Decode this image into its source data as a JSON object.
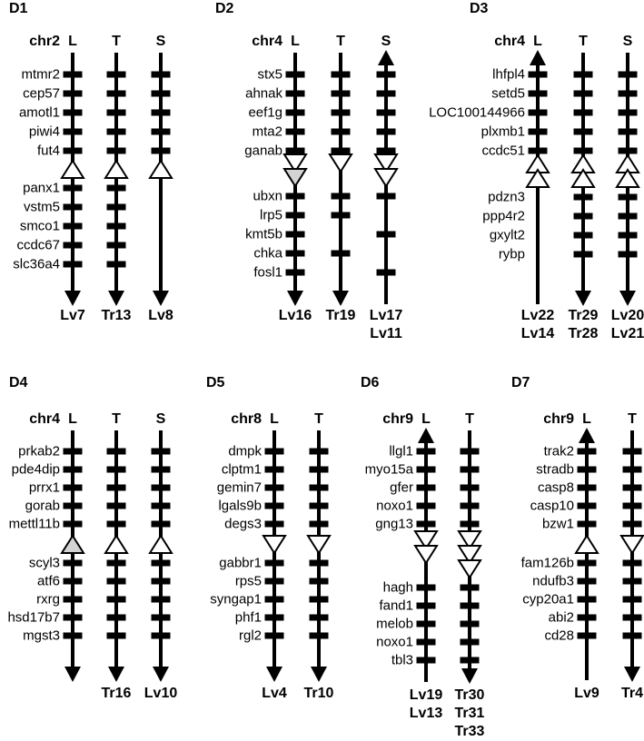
{
  "figure": {
    "colors": {
      "background": "#ffffff",
      "ink": "#000000",
      "gray_fill": "#d3d3d3",
      "white_fill": "#ffffff"
    },
    "panels": [
      {
        "id": "D1",
        "chromosome": "chr2",
        "genes_above": [
          "mtmr2",
          "cep57",
          "amotl1",
          "piwi4",
          "fut4"
        ],
        "genes_below": [
          "panx1",
          "vstm5",
          "smco1",
          "ccdc67",
          "slc36a4"
        ],
        "columns": [
          {
            "header": "L",
            "top": "line",
            "bottom": "arrow-down",
            "ticks_above": [
              0,
              1,
              2,
              3,
              4
            ],
            "ticks_below": [
              0,
              1,
              2,
              3,
              4
            ],
            "triangles": [
              {
                "dir": "up",
                "fill": "white"
              }
            ],
            "labels": [
              "Lv7"
            ]
          },
          {
            "header": "T",
            "top": "line",
            "bottom": "arrow-down",
            "ticks_above": [
              0,
              1,
              2,
              3,
              4
            ],
            "ticks_below": [
              0,
              1,
              2,
              3,
              4
            ],
            "triangles": [
              {
                "dir": "up",
                "fill": "white"
              }
            ],
            "labels": [
              "Tr13"
            ]
          },
          {
            "header": "S",
            "top": "line",
            "bottom": "arrow-down",
            "ticks_above": [
              0,
              1,
              2,
              3,
              4
            ],
            "ticks_below": [],
            "triangles": [
              {
                "dir": "up",
                "fill": "white"
              }
            ],
            "labels": [
              "Lv8"
            ]
          }
        ]
      },
      {
        "id": "D2",
        "chromosome": "chr4",
        "genes_above": [
          "stx5",
          "ahnak",
          "eef1g",
          "mta2",
          "ganab"
        ],
        "genes_below": [
          "ubxn",
          "lrp5",
          "kmt5b",
          "chka",
          "fosl1"
        ],
        "columns": [
          {
            "header": "L",
            "top": "line",
            "bottom": "arrow-down",
            "ticks_above": [
              0,
              1,
              2,
              3,
              4
            ],
            "ticks_below": [
              0,
              1,
              2,
              3,
              4
            ],
            "triangles": [
              {
                "dir": "down",
                "fill": "white"
              },
              {
                "dir": "down",
                "fill": "gray"
              }
            ],
            "labels": [
              "Lv16"
            ]
          },
          {
            "header": "T",
            "top": "line",
            "bottom": "arrow-down",
            "ticks_above": [
              0,
              1,
              2,
              3,
              4
            ],
            "ticks_below": [
              0,
              1,
              3
            ],
            "triangles": [
              {
                "dir": "down",
                "fill": "white"
              }
            ],
            "labels": [
              "Tr19"
            ]
          },
          {
            "header": "S",
            "top": "arrow-up",
            "bottom": "line",
            "ticks_above": [
              0,
              1,
              2,
              3,
              4
            ],
            "ticks_below": [
              0,
              2,
              4
            ],
            "triangles": [
              {
                "dir": "down",
                "fill": "white"
              },
              {
                "dir": "down",
                "fill": "white"
              }
            ],
            "labels": [
              "Lv17",
              "Lv11"
            ]
          }
        ]
      },
      {
        "id": "D3",
        "chromosome": "chr4",
        "genes_above": [
          "lhfpl4",
          "setd5",
          "LOC100144966",
          "plxmb1",
          "ccdc51"
        ],
        "genes_below": [
          "pdzn3",
          "ppp4r2",
          "gxylt2",
          "rybp"
        ],
        "columns": [
          {
            "header": "L",
            "top": "arrow-up",
            "bottom": "line",
            "ticks_above": [
              0,
              1,
              2,
              3,
              4
            ],
            "ticks_below": [],
            "triangles": [
              {
                "dir": "up",
                "fill": "white"
              },
              {
                "dir": "up",
                "fill": "white"
              }
            ],
            "labels": [
              "Lv22",
              "Lv14"
            ]
          },
          {
            "header": "T",
            "top": "line",
            "bottom": "arrow-down",
            "ticks_above": [
              0,
              1,
              2,
              3,
              4
            ],
            "ticks_below": [
              0,
              1,
              2,
              3
            ],
            "triangles": [
              {
                "dir": "up",
                "fill": "white"
              },
              {
                "dir": "up",
                "fill": "white"
              }
            ],
            "labels": [
              "Tr29",
              "Tr28"
            ]
          },
          {
            "header": "S",
            "top": "line",
            "bottom": "arrow-down",
            "ticks_above": [
              0,
              1,
              2,
              3,
              4
            ],
            "ticks_below": [
              0,
              1,
              2,
              3
            ],
            "triangles": [
              {
                "dir": "up",
                "fill": "white"
              },
              {
                "dir": "up",
                "fill": "white"
              }
            ],
            "labels": [
              "Lv20",
              "Lv21"
            ]
          }
        ]
      },
      {
        "id": "D4",
        "chromosome": "chr4",
        "genes_above": [
          "prkab2",
          "pde4dip",
          "prrx1",
          "gorab",
          "mettl11b"
        ],
        "genes_below": [
          "scyl3",
          "atf6",
          "rxrg",
          "hsd17b7",
          "mgst3"
        ],
        "columns": [
          {
            "header": "L",
            "top": "line",
            "bottom": "arrow-down",
            "ticks_above": [
              0,
              1,
              2,
              3,
              4
            ],
            "ticks_below": [
              0,
              1,
              2,
              3,
              4
            ],
            "triangles": [
              {
                "dir": "up",
                "fill": "gray"
              }
            ],
            "labels": []
          },
          {
            "header": "T",
            "top": "line",
            "bottom": "arrow-down",
            "ticks_above": [
              0,
              1,
              2,
              3,
              4
            ],
            "ticks_below": [
              0,
              1,
              2,
              3,
              4
            ],
            "triangles": [
              {
                "dir": "up",
                "fill": "white"
              }
            ],
            "labels": [
              "Tr16"
            ]
          },
          {
            "header": "S",
            "top": "line",
            "bottom": "arrow-down",
            "ticks_above": [
              0,
              1,
              2,
              3,
              4
            ],
            "ticks_below": [
              0,
              1,
              2,
              3,
              4
            ],
            "triangles": [
              {
                "dir": "up",
                "fill": "white"
              }
            ],
            "labels": [
              "Lv10"
            ]
          }
        ]
      },
      {
        "id": "D5",
        "chromosome": "chr8",
        "genes_above": [
          "dmpk",
          "clptm1",
          "gemin7",
          "lgals9b",
          "degs3"
        ],
        "genes_below": [
          "gabbr1",
          "rps5",
          "syngap1",
          "phf1",
          "rgl2"
        ],
        "columns": [
          {
            "header": "L",
            "top": "line",
            "bottom": "arrow-down",
            "ticks_above": [
              0,
              1,
              2,
              3,
              4
            ],
            "ticks_below": [
              0,
              1,
              2,
              3,
              4
            ],
            "triangles": [
              {
                "dir": "down",
                "fill": "white"
              }
            ],
            "labels": [
              "Lv4"
            ]
          },
          {
            "header": "T",
            "top": "line",
            "bottom": "arrow-down",
            "ticks_above": [
              0,
              1,
              2,
              3,
              4
            ],
            "ticks_below": [
              0,
              1,
              2,
              3,
              4
            ],
            "triangles": [
              {
                "dir": "down",
                "fill": "white"
              }
            ],
            "labels": [
              "Tr10"
            ]
          }
        ]
      },
      {
        "id": "D6",
        "chromosome": "chr9",
        "genes_above": [
          "llgl1",
          "myo15a",
          "gfer",
          "noxo1",
          "gng13"
        ],
        "genes_below": [
          "hagh",
          "fand1",
          "melob",
          "noxo1",
          "tbl3"
        ],
        "columns": [
          {
            "header": "L",
            "top": "arrow-up",
            "bottom": "line",
            "ticks_above": [
              0,
              1,
              2,
              3,
              4
            ],
            "ticks_below": [
              0,
              1,
              2,
              3,
              4
            ],
            "triangles": [
              {
                "dir": "down",
                "fill": "white"
              },
              {
                "dir": "down",
                "fill": "white"
              }
            ],
            "labels": [
              "Lv19",
              "Lv13"
            ]
          },
          {
            "header": "T",
            "top": "line",
            "bottom": "arrow-down",
            "ticks_above": [
              0,
              1,
              2,
              3,
              4
            ],
            "ticks_below": [
              0,
              1,
              2,
              3,
              4
            ],
            "triangles": [
              {
                "dir": "down",
                "fill": "white"
              },
              {
                "dir": "down",
                "fill": "white"
              },
              {
                "dir": "down",
                "fill": "white"
              }
            ],
            "labels": [
              "Tr30",
              "Tr31",
              "Tr33"
            ]
          }
        ]
      },
      {
        "id": "D7",
        "chromosome": "chr9",
        "genes_above": [
          "trak2",
          "stradb",
          "casp8",
          "casp10",
          "bzw1"
        ],
        "genes_below": [
          "fam126b",
          "ndufb3",
          "cyp20a1",
          "abi2",
          "cd28"
        ],
        "columns": [
          {
            "header": "L",
            "top": "arrow-up",
            "bottom": "line",
            "ticks_above": [
              0,
              1,
              2,
              3,
              4
            ],
            "ticks_below": [
              0,
              1,
              2,
              3,
              4
            ],
            "triangles": [
              {
                "dir": "up",
                "fill": "white"
              }
            ],
            "labels": [
              "Lv9"
            ]
          },
          {
            "header": "T",
            "top": "line",
            "bottom": "arrow-down",
            "ticks_above": [
              0,
              1,
              2,
              3,
              4
            ],
            "ticks_below": [
              0,
              1,
              2,
              3,
              4
            ],
            "triangles": [
              {
                "dir": "down",
                "fill": "white"
              }
            ],
            "labels": [
              "Tr4"
            ]
          }
        ]
      }
    ]
  }
}
